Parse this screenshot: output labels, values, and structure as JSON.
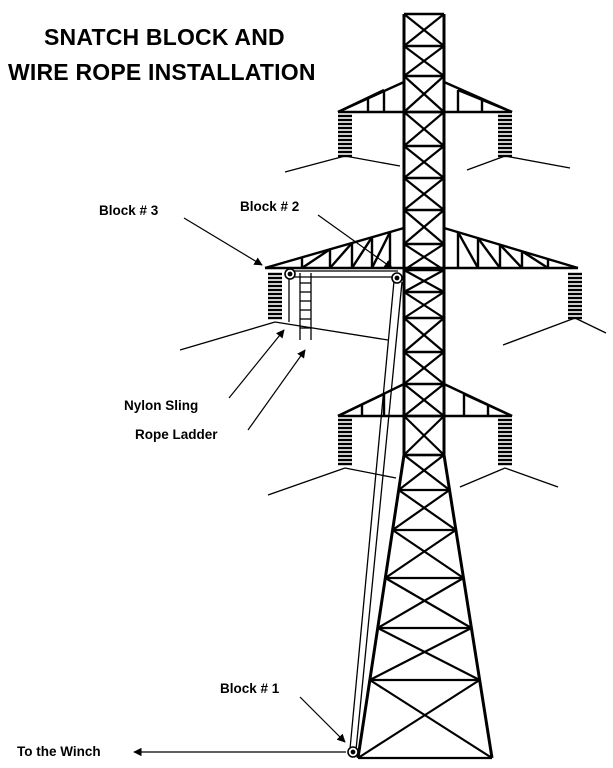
{
  "title": {
    "line1": "SNATCH BLOCK AND",
    "line2": "WIRE ROPE INSTALLATION"
  },
  "labels": {
    "block3": "Block # 3",
    "block2": "Block # 2",
    "block1": "Block # 1",
    "nylon_sling": "Nylon Sling",
    "rope_ladder": "Rope Ladder",
    "to_winch": "To the Winch"
  },
  "colors": {
    "ink": "#000000",
    "background": "#ffffff"
  }
}
